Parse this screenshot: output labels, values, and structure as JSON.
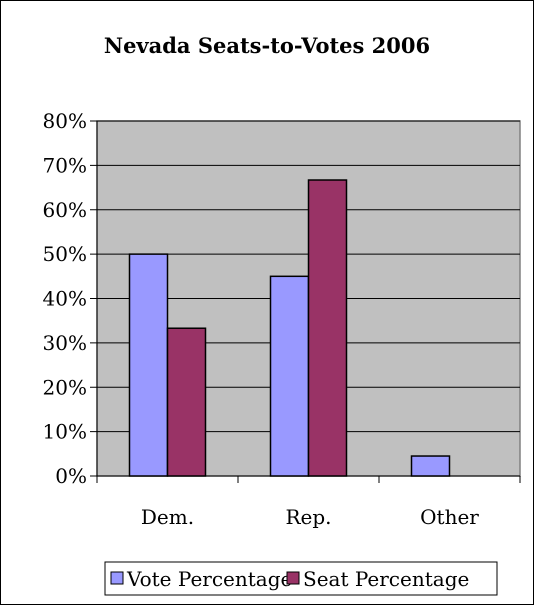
{
  "chart_data": {
    "type": "bar",
    "title": "Nevada Seats-to-Votes 2006",
    "categories": [
      "Dem.",
      "Rep.",
      "Other"
    ],
    "series": [
      {
        "name": "Vote Percentage",
        "color": "#9999FF",
        "values": [
          50,
          45,
          4.5
        ]
      },
      {
        "name": "Seat Percentage",
        "color": "#993366",
        "values": [
          33.3,
          66.7,
          0
        ]
      }
    ],
    "ylim": [
      0,
      80
    ],
    "yticks": [
      "0%",
      "10%",
      "20%",
      "30%",
      "40%",
      "50%",
      "60%",
      "70%",
      "80%"
    ],
    "plot_background": "#C0C0C0",
    "grid": true,
    "legend_position": "bottom"
  }
}
